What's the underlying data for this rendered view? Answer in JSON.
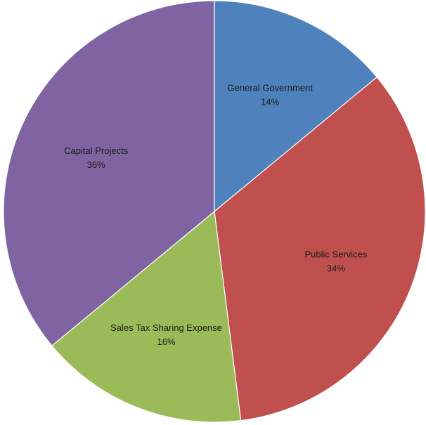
{
  "chart_data": {
    "type": "pie",
    "title": "",
    "start_angle_deg": 0,
    "direction": "clockwise",
    "slices": [
      {
        "label": "General Government",
        "value": 14,
        "display": "14%",
        "color": "#4F81BD"
      },
      {
        "label": "Public Services",
        "value": 34,
        "display": "34%",
        "color": "#C0504D"
      },
      {
        "label": "Sales Tax Sharing Expense",
        "value": 16,
        "display": "16%",
        "color": "#9BBB59"
      },
      {
        "label": "Capital Projects",
        "value": 36,
        "display": "36%",
        "color": "#8064A2"
      }
    ]
  }
}
